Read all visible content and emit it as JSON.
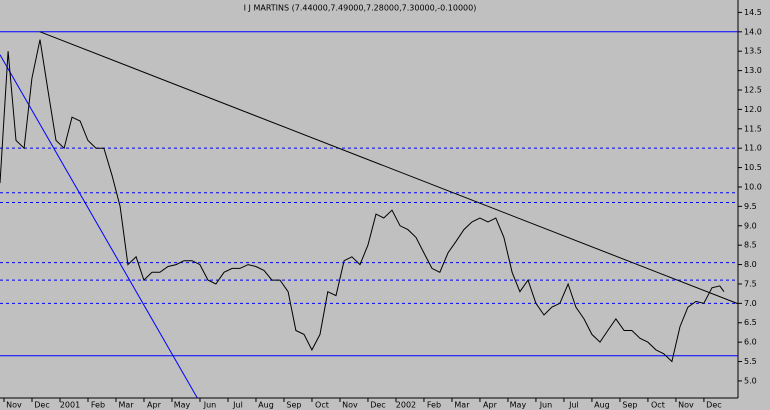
{
  "chart_data": {
    "type": "line",
    "title": "I J MARTINS (7.44000,7.49000,7.28000,7.30000,-0.10000)",
    "xlim": [
      -0.5,
      25.86
    ],
    "xticks": [
      {
        "value": 0,
        "label": "Nov"
      },
      {
        "value": 1,
        "label": "Dec"
      },
      {
        "value": 2,
        "label": "2001"
      },
      {
        "value": 3,
        "label": "Feb"
      },
      {
        "value": 4,
        "label": "Mar"
      },
      {
        "value": 5,
        "label": "Apr"
      },
      {
        "value": 6,
        "label": "May"
      },
      {
        "value": 7,
        "label": "Jun"
      },
      {
        "value": 8,
        "label": "Jul"
      },
      {
        "value": 9,
        "label": "Aug"
      },
      {
        "value": 10,
        "label": "Sep"
      },
      {
        "value": 11,
        "label": "Oct"
      },
      {
        "value": 12,
        "label": "Nov"
      },
      {
        "value": 13,
        "label": "Dec"
      },
      {
        "value": 14,
        "label": "2002"
      },
      {
        "value": 15,
        "label": "Feb"
      },
      {
        "value": 16,
        "label": "Mar"
      },
      {
        "value": 17,
        "label": "Apr"
      },
      {
        "value": 18,
        "label": "May"
      },
      {
        "value": 19,
        "label": "Jun"
      },
      {
        "value": 20,
        "label": "Jul"
      },
      {
        "value": 21,
        "label": "Aug"
      },
      {
        "value": 22,
        "label": "Sep"
      },
      {
        "value": 23,
        "label": "Oct"
      },
      {
        "value": 24,
        "label": "Nov"
      },
      {
        "value": 25,
        "label": "Dec"
      }
    ],
    "ylim": [
      4.56,
      14.82
    ],
    "yticks": [
      {
        "value": 5,
        "label": "5.0"
      },
      5.5,
      {
        "value": 6,
        "label": "6.0"
      },
      6.5,
      {
        "value": 7,
        "label": "7.0"
      },
      7.5,
      {
        "value": 8,
        "label": "8.0"
      },
      8.5,
      {
        "value": 9,
        "label": "9.0"
      },
      9.5,
      {
        "value": 10,
        "label": "10.0"
      },
      10.5,
      {
        "value": 11,
        "label": "11.0"
      },
      11.5,
      {
        "value": 12,
        "label": "12.0"
      },
      12.5,
      {
        "value": 13,
        "label": "13.0"
      },
      13.5,
      {
        "value": 14,
        "label": "14.0"
      },
      14.5
    ],
    "series": [
      {
        "color": "#000000",
        "x": [
          -0.5,
          -0.21,
          0.07,
          0.36,
          0.64,
          0.93,
          1.21,
          1.5,
          1.79,
          2.07,
          2.36,
          2.64,
          2.93,
          3.21,
          3.5,
          3.79,
          4.07,
          4.36,
          4.64,
          4.93,
          5.21,
          5.5,
          5.79,
          6.07,
          6.36,
          6.64,
          6.93,
          7.21,
          7.5,
          7.79,
          8.07,
          8.36,
          8.64,
          8.93,
          9.21,
          9.5,
          9.79,
          10.07,
          10.36,
          10.64,
          10.93,
          11.21,
          11.5,
          11.79,
          12.07,
          12.36,
          12.64,
          12.93,
          13.21,
          13.5,
          13.79,
          14.07,
          14.36,
          14.64,
          14.93,
          15.21,
          15.5,
          15.79,
          16.07,
          16.36,
          16.64,
          16.93,
          17.21,
          17.5,
          17.79,
          18.07,
          18.36,
          18.64,
          18.93,
          19.21,
          19.5,
          19.79,
          20.07,
          20.36,
          20.64,
          20.93,
          21.21,
          21.5,
          21.79,
          22.07,
          22.36,
          22.64,
          22.93,
          23.21,
          23.5,
          23.79,
          24.07,
          24.36,
          24.64,
          24.93,
          25.21,
          25.36
        ],
        "values": [
          10.1,
          13.5,
          11.2,
          11.0,
          12.8,
          13.8,
          12.5,
          11.2,
          11.0,
          11.8,
          11.7,
          11.2,
          11.0,
          11.0,
          10.3,
          9.5,
          8.0,
          8.2,
          7.6,
          7.8,
          7.8,
          7.95,
          8.0,
          8.1,
          8.1,
          8.0,
          7.6,
          7.5,
          7.8,
          7.9,
          7.9,
          8.0,
          7.95,
          7.85,
          7.6,
          7.6,
          7.3,
          6.3,
          6.2,
          5.8,
          6.2,
          7.3,
          7.2,
          8.1,
          8.2,
          8.0,
          8.5,
          9.3,
          9.2,
          9.4,
          9.0,
          8.9,
          8.7,
          8.3,
          7.9,
          7.8,
          8.3,
          8.6,
          8.9,
          9.1,
          9.2,
          9.1,
          9.2,
          8.7,
          7.8,
          7.3,
          7.6,
          7.0,
          6.7,
          6.9,
          7.0,
          7.5,
          6.9,
          6.6,
          6.2,
          6.0,
          6.3,
          6.6,
          6.3,
          6.3,
          6.1,
          6.0,
          5.8,
          5.7,
          5.5,
          6.4,
          6.9,
          7.05,
          7.0,
          7.4,
          7.45,
          7.3
        ]
      }
    ],
    "hlines": [
      {
        "value": 14.0,
        "color": "#0000ff",
        "style": "solid"
      },
      {
        "value": 11.0,
        "color": "#0000ff",
        "style": "dashed"
      },
      {
        "value": 9.85,
        "color": "#0000ff",
        "style": "dashed"
      },
      {
        "value": 9.6,
        "color": "#0000ff",
        "style": "dashed"
      },
      {
        "value": 8.05,
        "color": "#0000ff",
        "style": "dashed"
      },
      {
        "value": 7.6,
        "color": "#0000ff",
        "style": "dashed"
      },
      {
        "value": 7.0,
        "color": "#0000ff",
        "style": "dashed"
      },
      {
        "value": 5.65,
        "color": "#0000ff",
        "style": "solid"
      }
    ],
    "trendlines": [
      {
        "x": [
          0.93,
          25.86
        ],
        "y": [
          14.0,
          6.99
        ],
        "color": "#000000"
      },
      {
        "x": [
          -0.5,
          6.54
        ],
        "y": [
          13.41,
          4.57
        ],
        "color": "#0000ff"
      }
    ]
  }
}
